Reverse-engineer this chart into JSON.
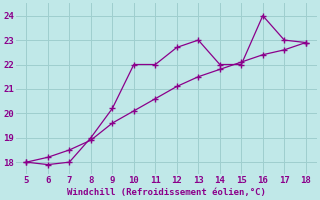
{
  "line1_x": [
    5,
    6,
    7,
    8,
    9,
    10,
    11,
    12,
    13,
    14,
    15,
    16,
    17,
    18
  ],
  "line1_y": [
    18.0,
    17.9,
    18.0,
    19.0,
    20.2,
    22.0,
    22.0,
    22.7,
    23.0,
    22.0,
    22.0,
    24.0,
    23.0,
    22.9
  ],
  "line2_x": [
    5,
    6,
    7,
    8,
    9,
    10,
    11,
    12,
    13,
    14,
    15,
    16,
    17,
    18
  ],
  "line2_y": [
    18.0,
    18.2,
    18.5,
    18.9,
    19.6,
    20.1,
    20.6,
    21.1,
    21.5,
    21.8,
    22.1,
    22.4,
    22.6,
    22.9
  ],
  "line_color": "#8b008b",
  "bg_color": "#c0e8e8",
  "grid_color": "#9ecece",
  "xlabel": "Windchill (Refroidissement éolien,°C)",
  "xlabel_color": "#8b008b",
  "tick_color": "#8b008b",
  "xlim": [
    4.5,
    18.5
  ],
  "ylim": [
    17.5,
    24.5
  ],
  "xticks": [
    5,
    6,
    7,
    8,
    9,
    10,
    11,
    12,
    13,
    14,
    15,
    16,
    17,
    18
  ],
  "yticks": [
    18,
    19,
    20,
    21,
    22,
    23,
    24
  ]
}
